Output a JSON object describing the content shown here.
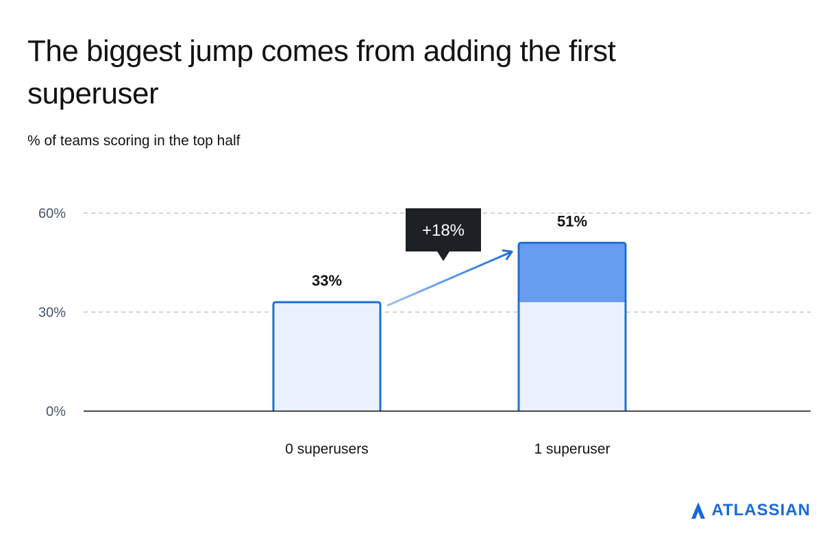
{
  "title": "The biggest jump comes from adding the first superuser",
  "subtitle": "% of teams scoring in the top half",
  "colors": {
    "bar_outline": "#1f6fd6",
    "bar_fill_light": "#e9f2fe",
    "bar_fill_increase": "#669df1",
    "gridline": "#c1c7d0",
    "axis": "#101214",
    "callout_bg": "#1d2125",
    "brand": "#1868db"
  },
  "chart_data": {
    "type": "bar",
    "categories": [
      "0 superusers",
      "1 superuser"
    ],
    "values": [
      33,
      51
    ],
    "value_labels": [
      "33%",
      "51%"
    ],
    "ylim": [
      0,
      60
    ],
    "yticks": [
      0,
      30,
      60
    ],
    "ytick_labels": [
      "0%",
      "30%",
      "60%"
    ],
    "grid": true,
    "annotation": {
      "text": "+18%",
      "from": 33,
      "to": 51
    },
    "title": "The biggest jump comes from adding the first superuser",
    "subtitle": "% of teams scoring in the top half"
  },
  "logo": {
    "text": "ATLASSIAN",
    "icon": "atlassian-triangle-icon"
  }
}
